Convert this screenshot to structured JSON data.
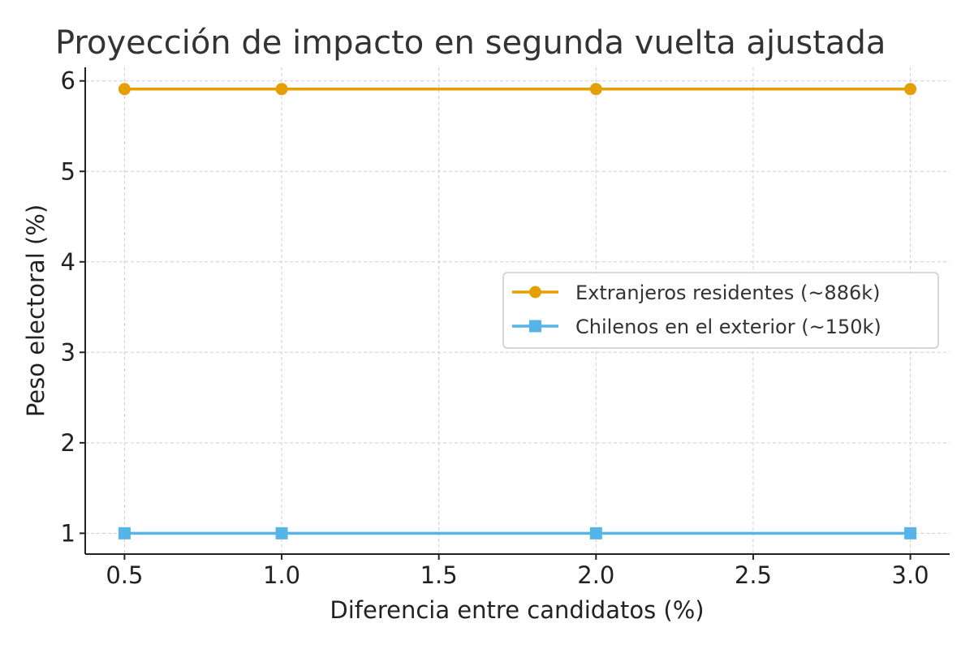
{
  "chart_data": {
    "type": "line",
    "title": "Proyección de impacto en segunda vuelta ajustada",
    "xlabel": "Diferencia entre candidatos (%)",
    "ylabel": "Peso electoral (%)",
    "x": [
      0.5,
      1.0,
      2.0,
      3.0
    ],
    "xlim": [
      0.375,
      3.125
    ],
    "ylim": [
      0.77,
      6.15
    ],
    "x_ticks": [
      "0.5",
      "1.0",
      "1.5",
      "2.0",
      "2.5",
      "3.0"
    ],
    "x_tick_values": [
      0.5,
      1.0,
      1.5,
      2.0,
      2.5,
      3.0
    ],
    "y_ticks": [
      "1",
      "2",
      "3",
      "4",
      "5",
      "6"
    ],
    "y_tick_values": [
      1,
      2,
      3,
      4,
      5,
      6
    ],
    "grid": true,
    "legend_position": "center-right",
    "series": [
      {
        "name": "Extranjeros residentes (~886k)",
        "values": [
          5.91,
          5.91,
          5.91,
          5.91
        ],
        "color": "#E69F00",
        "marker": "circle"
      },
      {
        "name": "Chilenos en el exterior (~150k)",
        "values": [
          1.0,
          1.0,
          1.0,
          1.0
        ],
        "color": "#56B4E9",
        "marker": "square"
      }
    ]
  }
}
